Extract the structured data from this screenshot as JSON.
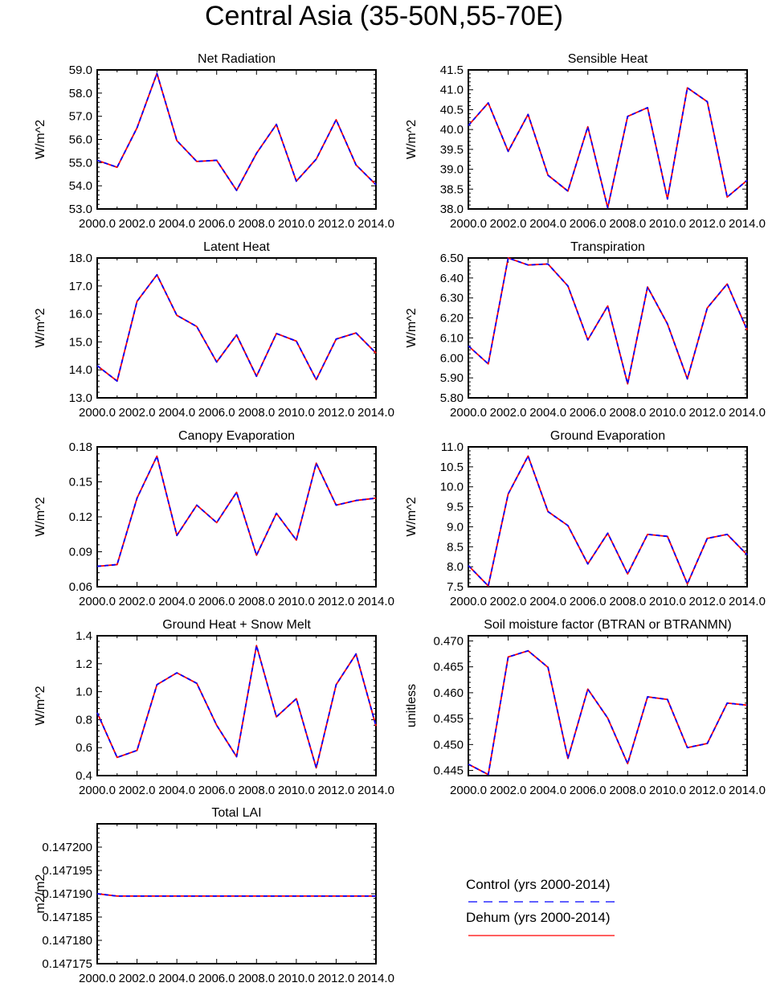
{
  "title": "Central Asia (35-50N,55-70E)",
  "legend": {
    "control_label": "Control (yrs 2000-2014)",
    "dehum_label": "Dehum (yrs 2000-2014)",
    "control_color": "#0000ff",
    "dehum_color": "#ff0000"
  },
  "chart_data": [
    {
      "type": "line",
      "title": "Net Radiation",
      "ylabel": "W/m^2",
      "x": [
        2000,
        2001,
        2002,
        2003,
        2004,
        2005,
        2006,
        2007,
        2008,
        2009,
        2010,
        2011,
        2012,
        2013,
        2014
      ],
      "xlim": [
        2000,
        2014
      ],
      "xticks": [
        "2000.0",
        "2002.0",
        "2004.0",
        "2006.0",
        "2008.0",
        "2010.0",
        "2012.0",
        "2014.0"
      ],
      "ylim": [
        53,
        59
      ],
      "yticks": [
        "53.0",
        "54.0",
        "55.0",
        "56.0",
        "57.0",
        "58.0",
        "59.0"
      ],
      "series": [
        {
          "name": "Control (yrs 2000-2014)",
          "values": [
            55.1,
            54.8,
            56.5,
            58.85,
            55.95,
            55.05,
            55.1,
            53.8,
            55.4,
            56.65,
            54.2,
            55.15,
            56.85,
            54.9,
            54.05
          ]
        },
        {
          "name": "Dehum (yrs 2000-2014)",
          "values": [
            55.1,
            54.8,
            56.5,
            58.85,
            55.95,
            55.05,
            55.1,
            53.8,
            55.4,
            56.65,
            54.2,
            55.15,
            56.85,
            54.9,
            54.05
          ]
        }
      ]
    },
    {
      "type": "line",
      "title": "Sensible Heat",
      "ylabel": "W/m^2",
      "x": [
        2000,
        2001,
        2002,
        2003,
        2004,
        2005,
        2006,
        2007,
        2008,
        2009,
        2010,
        2011,
        2012,
        2013,
        2014
      ],
      "xlim": [
        2000,
        2014
      ],
      "xticks": [
        "2000.0",
        "2002.0",
        "2004.0",
        "2006.0",
        "2008.0",
        "2010.0",
        "2012.0",
        "2014.0"
      ],
      "ylim": [
        38,
        41.5
      ],
      "yticks": [
        "38.0",
        "38.5",
        "39.0",
        "39.5",
        "40.0",
        "40.5",
        "41.0",
        "41.5"
      ],
      "series": [
        {
          "name": "Control (yrs 2000-2014)",
          "values": [
            40.1,
            40.67,
            39.45,
            40.38,
            38.85,
            38.45,
            40.07,
            38.03,
            40.33,
            40.55,
            38.25,
            41.05,
            40.7,
            38.3,
            38.72
          ]
        },
        {
          "name": "Dehum (yrs 2000-2014)",
          "values": [
            40.1,
            40.67,
            39.45,
            40.38,
            38.85,
            38.45,
            40.07,
            38.03,
            40.33,
            40.55,
            38.25,
            41.05,
            40.7,
            38.3,
            38.72
          ]
        }
      ]
    },
    {
      "type": "line",
      "title": "Latent Heat",
      "ylabel": "W/m^2",
      "x": [
        2000,
        2001,
        2002,
        2003,
        2004,
        2005,
        2006,
        2007,
        2008,
        2009,
        2010,
        2011,
        2012,
        2013,
        2014
      ],
      "xlim": [
        2000,
        2014
      ],
      "xticks": [
        "2000.0",
        "2002.0",
        "2004.0",
        "2006.0",
        "2008.0",
        "2010.0",
        "2012.0",
        "2014.0"
      ],
      "ylim": [
        13,
        18
      ],
      "yticks": [
        "13.0",
        "14.0",
        "15.0",
        "16.0",
        "17.0",
        "18.0"
      ],
      "series": [
        {
          "name": "Control (yrs 2000-2014)",
          "values": [
            14.15,
            13.6,
            16.45,
            17.4,
            15.95,
            15.55,
            14.28,
            15.25,
            13.77,
            15.3,
            15.03,
            13.65,
            15.1,
            15.32,
            14.6
          ]
        },
        {
          "name": "Dehum (yrs 2000-2014)",
          "values": [
            14.15,
            13.6,
            16.45,
            17.4,
            15.95,
            15.55,
            14.28,
            15.25,
            13.77,
            15.3,
            15.03,
            13.65,
            15.1,
            15.32,
            14.6
          ]
        }
      ]
    },
    {
      "type": "line",
      "title": "Transpiration",
      "ylabel": "W/m^2",
      "x": [
        2000,
        2001,
        2002,
        2003,
        2004,
        2005,
        2006,
        2007,
        2008,
        2009,
        2010,
        2011,
        2012,
        2013,
        2014
      ],
      "xlim": [
        2000,
        2014
      ],
      "xticks": [
        "2000.0",
        "2002.0",
        "2004.0",
        "2006.0",
        "2008.0",
        "2010.0",
        "2012.0",
        "2014.0"
      ],
      "ylim": [
        5.8,
        6.5
      ],
      "yticks": [
        "5.80",
        "5.90",
        "6.00",
        "6.10",
        "6.20",
        "6.30",
        "6.40",
        "6.50"
      ],
      "series": [
        {
          "name": "Control (yrs 2000-2014)",
          "values": [
            6.06,
            5.97,
            6.5,
            6.465,
            6.47,
            6.36,
            6.09,
            6.26,
            5.87,
            6.355,
            6.17,
            5.895,
            6.25,
            6.37,
            6.14
          ]
        },
        {
          "name": "Dehum (yrs 2000-2014)",
          "values": [
            6.06,
            5.97,
            6.5,
            6.465,
            6.47,
            6.36,
            6.09,
            6.26,
            5.87,
            6.355,
            6.17,
            5.895,
            6.25,
            6.37,
            6.14
          ]
        }
      ]
    },
    {
      "type": "line",
      "title": "Canopy Evaporation",
      "ylabel": "W/m^2",
      "x": [
        2000,
        2001,
        2002,
        2003,
        2004,
        2005,
        2006,
        2007,
        2008,
        2009,
        2010,
        2011,
        2012,
        2013,
        2014
      ],
      "xlim": [
        2000,
        2014
      ],
      "xticks": [
        "2000.0",
        "2002.0",
        "2004.0",
        "2006.0",
        "2008.0",
        "2010.0",
        "2012.0",
        "2014.0"
      ],
      "ylim": [
        0.06,
        0.18
      ],
      "yticks": [
        "0.06",
        "0.09",
        "0.12",
        "0.15",
        "0.18"
      ],
      "series": [
        {
          "name": "Control (yrs 2000-2014)",
          "values": [
            0.0775,
            0.079,
            0.136,
            0.172,
            0.104,
            0.13,
            0.115,
            0.141,
            0.087,
            0.123,
            0.1,
            0.166,
            0.13,
            0.134,
            0.136
          ]
        },
        {
          "name": "Dehum (yrs 2000-2014)",
          "values": [
            0.0775,
            0.079,
            0.136,
            0.172,
            0.104,
            0.13,
            0.115,
            0.141,
            0.087,
            0.123,
            0.1,
            0.166,
            0.13,
            0.134,
            0.136
          ]
        }
      ]
    },
    {
      "type": "line",
      "title": "Ground Evaporation",
      "ylabel": "W/m^2",
      "x": [
        2000,
        2001,
        2002,
        2003,
        2004,
        2005,
        2006,
        2007,
        2008,
        2009,
        2010,
        2011,
        2012,
        2013,
        2014
      ],
      "xlim": [
        2000,
        2014
      ],
      "xticks": [
        "2000.0",
        "2002.0",
        "2004.0",
        "2006.0",
        "2008.0",
        "2010.0",
        "2012.0",
        "2014.0"
      ],
      "ylim": [
        7.5,
        11
      ],
      "yticks": [
        "7.5",
        "8.0",
        "8.5",
        "9.0",
        "9.5",
        "10.0",
        "10.5",
        "11.0"
      ],
      "series": [
        {
          "name": "Control (yrs 2000-2014)",
          "values": [
            8.03,
            7.52,
            9.82,
            10.77,
            9.38,
            9.03,
            8.07,
            8.84,
            7.82,
            8.81,
            8.76,
            7.57,
            8.71,
            8.81,
            8.3
          ]
        },
        {
          "name": "Dehum (yrs 2000-2014)",
          "values": [
            8.03,
            7.52,
            9.82,
            10.77,
            9.38,
            9.03,
            8.07,
            8.84,
            7.82,
            8.81,
            8.76,
            7.57,
            8.71,
            8.81,
            8.3
          ]
        }
      ]
    },
    {
      "type": "line",
      "title": "Ground Heat + Snow Melt",
      "ylabel": "W/m^2",
      "x": [
        2000,
        2001,
        2002,
        2003,
        2004,
        2005,
        2006,
        2007,
        2008,
        2009,
        2010,
        2011,
        2012,
        2013,
        2014
      ],
      "xlim": [
        2000,
        2014
      ],
      "xticks": [
        "2000.0",
        "2002.0",
        "2004.0",
        "2006.0",
        "2008.0",
        "2010.0",
        "2012.0",
        "2014.0"
      ],
      "ylim": [
        0.4,
        1.4
      ],
      "yticks": [
        "0.4",
        "0.6",
        "0.8",
        "1.0",
        "1.2",
        "1.4"
      ],
      "series": [
        {
          "name": "Control (yrs 2000-2014)",
          "values": [
            0.85,
            0.53,
            0.58,
            1.05,
            1.135,
            1.06,
            0.76,
            0.535,
            1.33,
            0.82,
            0.95,
            0.455,
            1.05,
            1.27,
            0.755
          ]
        },
        {
          "name": "Dehum (yrs 2000-2014)",
          "values": [
            0.85,
            0.53,
            0.58,
            1.05,
            1.135,
            1.06,
            0.76,
            0.535,
            1.33,
            0.82,
            0.95,
            0.455,
            1.05,
            1.27,
            0.755
          ]
        }
      ]
    },
    {
      "type": "line",
      "title": "Soil moisture factor (BTRAN or BTRANMN)",
      "ylabel": "unitless",
      "x": [
        2000,
        2001,
        2002,
        2003,
        2004,
        2005,
        2006,
        2007,
        2008,
        2009,
        2010,
        2011,
        2012,
        2013,
        2014
      ],
      "xlim": [
        2000,
        2014
      ],
      "xticks": [
        "2000.0",
        "2002.0",
        "2004.0",
        "2006.0",
        "2008.0",
        "2010.0",
        "2012.0",
        "2014.0"
      ],
      "ylim": [
        0.444,
        0.471
      ],
      "yticks": [
        "0.445",
        "0.450",
        "0.455",
        "0.460",
        "0.465",
        "0.470"
      ],
      "series": [
        {
          "name": "Control (yrs 2000-2014)",
          "values": [
            0.4462,
            0.4442,
            0.4669,
            0.4681,
            0.4649,
            0.4473,
            0.4607,
            0.4551,
            0.4463,
            0.4592,
            0.4587,
            0.4494,
            0.4502,
            0.458,
            0.4576
          ]
        },
        {
          "name": "Dehum (yrs 2000-2014)",
          "values": [
            0.4462,
            0.4442,
            0.4669,
            0.4681,
            0.4649,
            0.4473,
            0.4607,
            0.4551,
            0.4463,
            0.4592,
            0.4587,
            0.4494,
            0.4502,
            0.458,
            0.4576
          ]
        }
      ]
    },
    {
      "type": "line",
      "title": "Total LAI",
      "ylabel": "m2/m2",
      "x": [
        2000,
        2001,
        2002,
        2003,
        2004,
        2005,
        2006,
        2007,
        2008,
        2009,
        2010,
        2011,
        2012,
        2013,
        2014
      ],
      "xlim": [
        2000,
        2014
      ],
      "xticks": [
        "2000.0",
        "2002.0",
        "2004.0",
        "2006.0",
        "2008.0",
        "2010.0",
        "2012.0",
        "2014.0"
      ],
      "ylim": [
        0.147175,
        0.147205
      ],
      "yticks": [
        "0.147175",
        "0.147180",
        "0.147185",
        "0.147190",
        "0.147195",
        "0.147200"
      ],
      "series": [
        {
          "name": "Control (yrs 2000-2014)",
          "values": [
            0.14719,
            0.1471895,
            0.1471895,
            0.1471895,
            0.1471895,
            0.1471895,
            0.1471895,
            0.1471895,
            0.1471895,
            0.1471895,
            0.1471895,
            0.1471895,
            0.1471895,
            0.1471895,
            0.1471895
          ]
        },
        {
          "name": "Dehum (yrs 2000-2014)",
          "values": [
            0.14719,
            0.1471895,
            0.1471895,
            0.1471895,
            0.1471895,
            0.1471895,
            0.1471895,
            0.1471895,
            0.1471895,
            0.1471895,
            0.1471895,
            0.1471895,
            0.1471895,
            0.1471895,
            0.1471895
          ]
        }
      ]
    }
  ]
}
